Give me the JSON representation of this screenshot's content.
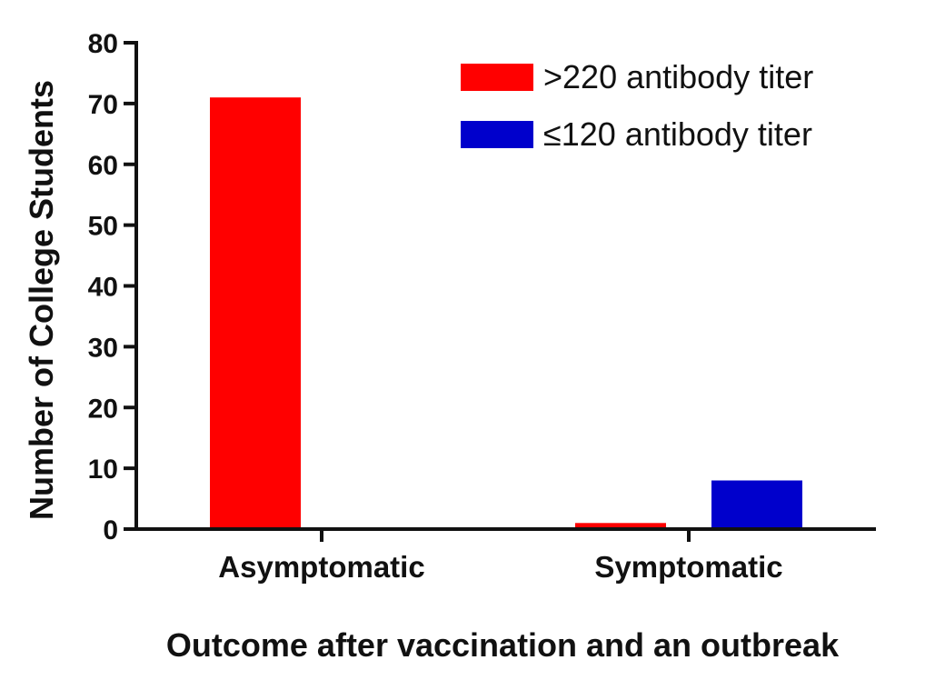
{
  "chart_data": {
    "type": "bar",
    "categories": [
      "Asymptomatic",
      "Symptomatic"
    ],
    "series": [
      {
        "name": ">220 antibody titer",
        "color": "#ff0000",
        "values": [
          71,
          1
        ]
      },
      {
        "name": "≤120 antibody titer",
        "color": "#0000cc",
        "values": [
          0,
          8
        ]
      }
    ],
    "xlabel": "Outcome after vaccination and an outbreak",
    "ylabel": "Number of College Students",
    "ylim": [
      0,
      80
    ],
    "yticks": [
      0,
      10,
      20,
      30,
      40,
      50,
      60,
      70,
      80
    ],
    "grid": false,
    "legend_position": "top-right"
  }
}
